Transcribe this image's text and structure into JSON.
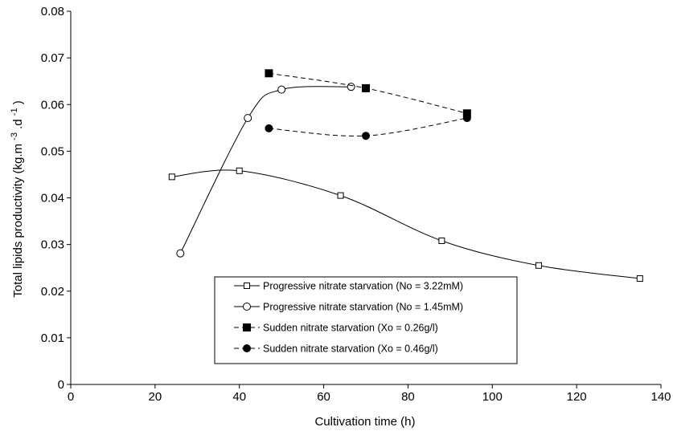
{
  "chart_data": {
    "type": "line",
    "xlabel": "Cultivation time (h)",
    "ylabel": {
      "main": "Total lipids productivity (kg.m",
      "exp1": "-3",
      "mid": ".d",
      "exp2": "-1",
      "end": ")"
    },
    "xlim": [
      0,
      140
    ],
    "ylim": [
      0,
      0.08
    ],
    "xticks": [
      0,
      20,
      40,
      60,
      80,
      100,
      120,
      140
    ],
    "yticks": [
      0,
      0.01,
      0.02,
      0.03,
      0.04,
      0.05,
      0.06,
      0.07,
      0.08
    ],
    "xtick_labels": [
      "0",
      "20",
      "40",
      "60",
      "80",
      "100",
      "120",
      "140"
    ],
    "ytick_labels": [
      "0",
      "0.01",
      "0.02",
      "0.03",
      "0.04",
      "0.05",
      "0.06",
      "0.07",
      "0.08"
    ],
    "grid": false,
    "legend_placement": "bottom-center",
    "series": [
      {
        "name": "Progressive nitrate starvation (No = 3.22mM)",
        "marker": "square-open",
        "line": "solid",
        "color": "#000000",
        "x": [
          24,
          40,
          64,
          88,
          111,
          135
        ],
        "y": [
          0.0445,
          0.0458,
          0.0405,
          0.0308,
          0.0255,
          0.0227
        ]
      },
      {
        "name": "Progressive nitrate starvation (No = 1.45mM)",
        "marker": "circle-open",
        "line": "solid",
        "color": "#000000",
        "x": [
          26,
          42,
          50,
          66.5
        ],
        "y": [
          0.0281,
          0.0571,
          0.0632,
          0.0638
        ]
      },
      {
        "name": "Sudden nitrate starvation (Xo = 0.26g/l)",
        "marker": "square-filled",
        "line": "dashed",
        "color": "#000000",
        "x": [
          47,
          70,
          94
        ],
        "y": [
          0.0667,
          0.0635,
          0.0581
        ]
      },
      {
        "name": "Sudden nitrate starvation (Xo = 0.46g/l)",
        "marker": "circle-filled",
        "line": "dashed",
        "color": "#000000",
        "x": [
          47,
          70,
          94
        ],
        "y": [
          0.0549,
          0.0533,
          0.0571
        ]
      }
    ]
  }
}
